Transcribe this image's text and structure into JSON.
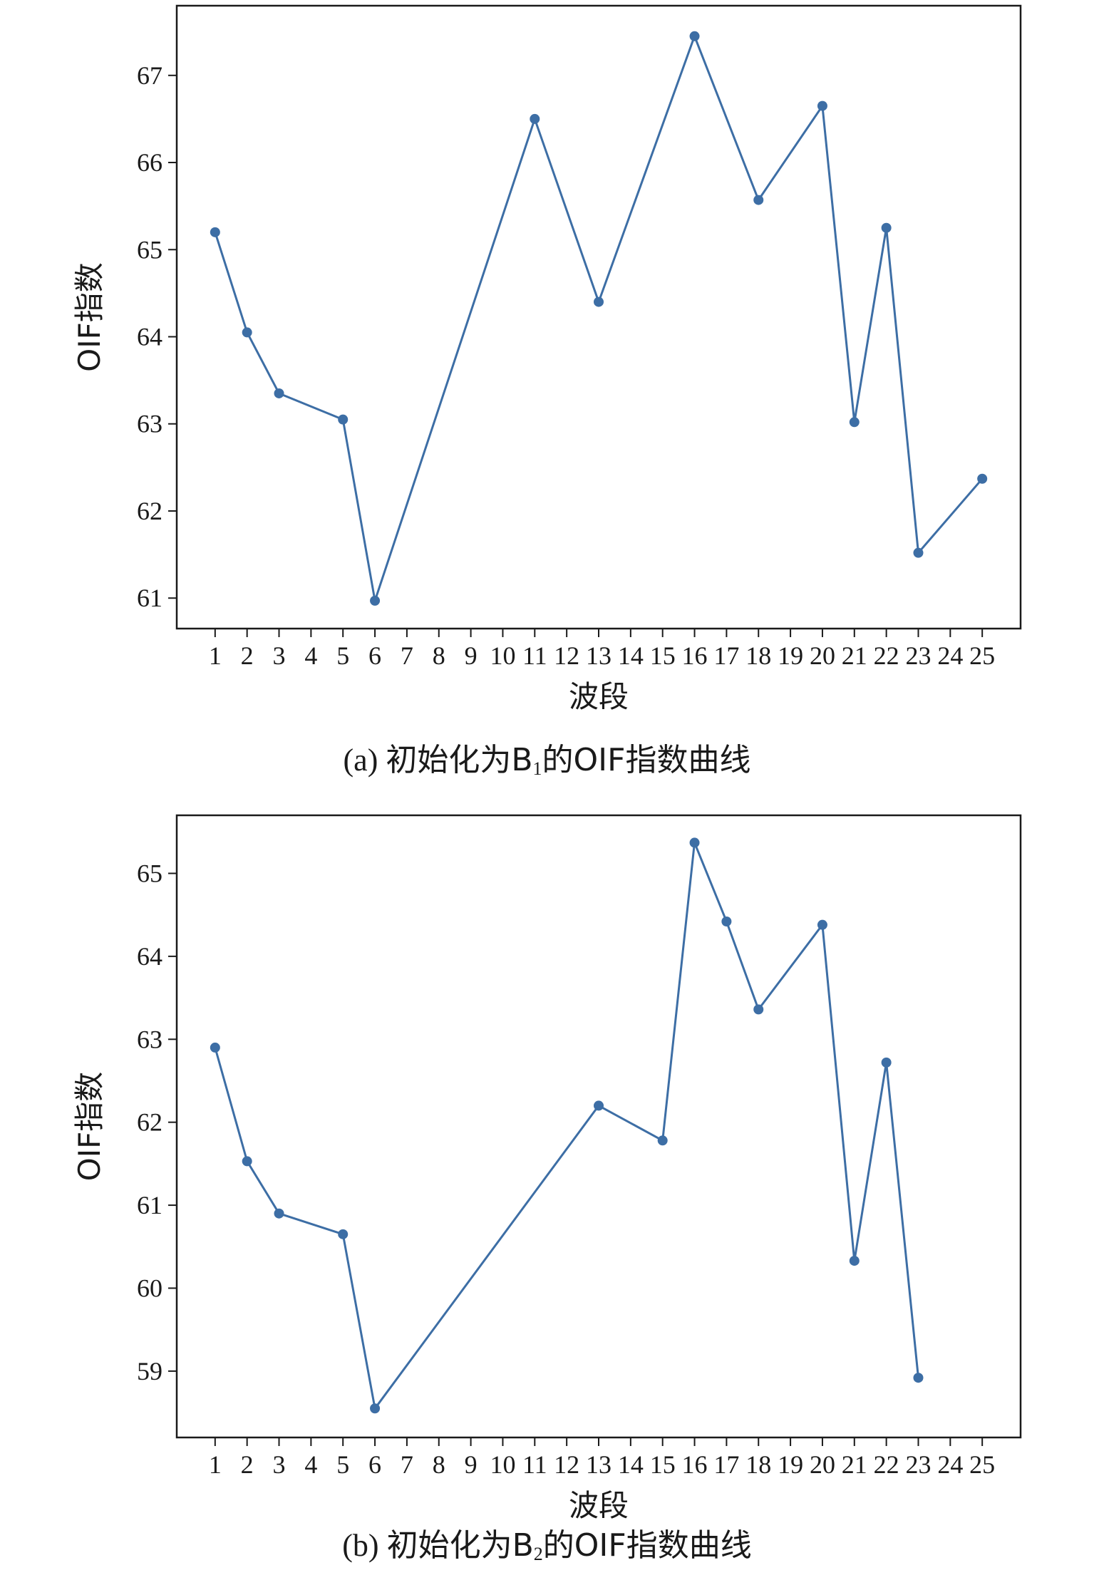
{
  "chart_data": [
    {
      "type": "line",
      "caption_prefix": "(a) ",
      "caption_mid": "初始化为B",
      "caption_sub": "1",
      "caption_end": "的OIF指数曲线",
      "xlabel": "波段",
      "ylabel": "OIF指数",
      "x_ticks": [
        "1",
        "2",
        "3",
        "4",
        "5",
        "6",
        "7",
        "8",
        "9",
        "10",
        "11",
        "12",
        "13",
        "14",
        "15",
        "16",
        "17",
        "18",
        "19",
        "20",
        "21",
        "22",
        "23",
        "24",
        "25"
      ],
      "y_ticks": [
        61,
        62,
        63,
        64,
        65,
        66,
        67
      ],
      "xlim": [
        -0.2,
        26.2
      ],
      "ylim": [
        60.65,
        67.8
      ],
      "color": "#3d6ea5",
      "points": [
        {
          "x": 1,
          "y": 65.2
        },
        {
          "x": 2,
          "y": 64.05
        },
        {
          "x": 3,
          "y": 63.35
        },
        {
          "x": 5,
          "y": 63.05
        },
        {
          "x": 6,
          "y": 60.97
        },
        {
          "x": 11,
          "y": 66.5
        },
        {
          "x": 13,
          "y": 64.4
        },
        {
          "x": 16,
          "y": 67.45
        },
        {
          "x": 18,
          "y": 65.57
        },
        {
          "x": 20,
          "y": 66.65
        },
        {
          "x": 21,
          "y": 63.02
        },
        {
          "x": 22,
          "y": 65.25
        },
        {
          "x": 23,
          "y": 61.52
        },
        {
          "x": 25,
          "y": 62.37
        }
      ]
    },
    {
      "type": "line",
      "caption_prefix": "(b) ",
      "caption_mid": "初始化为B",
      "caption_sub": "2",
      "caption_end": "的OIF指数曲线",
      "xlabel": "波段",
      "ylabel": "OIF指数",
      "x_ticks": [
        "1",
        "2",
        "3",
        "4",
        "5",
        "6",
        "7",
        "8",
        "9",
        "10",
        "11",
        "12",
        "13",
        "14",
        "15",
        "16",
        "17",
        "18",
        "19",
        "20",
        "21",
        "22",
        "23",
        "24",
        "25"
      ],
      "y_ticks": [
        59,
        60,
        61,
        62,
        63,
        64,
        65
      ],
      "xlim": [
        -0.2,
        26.2
      ],
      "ylim": [
        58.2,
        65.7
      ],
      "color": "#3d6ea5",
      "points": [
        {
          "x": 1,
          "y": 62.9
        },
        {
          "x": 2,
          "y": 61.53
        },
        {
          "x": 3,
          "y": 60.9
        },
        {
          "x": 5,
          "y": 60.65
        },
        {
          "x": 6,
          "y": 58.55
        },
        {
          "x": 13,
          "y": 62.2
        },
        {
          "x": 15,
          "y": 61.78
        },
        {
          "x": 16,
          "y": 65.37
        },
        {
          "x": 17,
          "y": 64.42
        },
        {
          "x": 18,
          "y": 63.36
        },
        {
          "x": 20,
          "y": 64.38
        },
        {
          "x": 21,
          "y": 60.33
        },
        {
          "x": 22,
          "y": 62.72
        },
        {
          "x": 23,
          "y": 58.92
        }
      ]
    }
  ]
}
